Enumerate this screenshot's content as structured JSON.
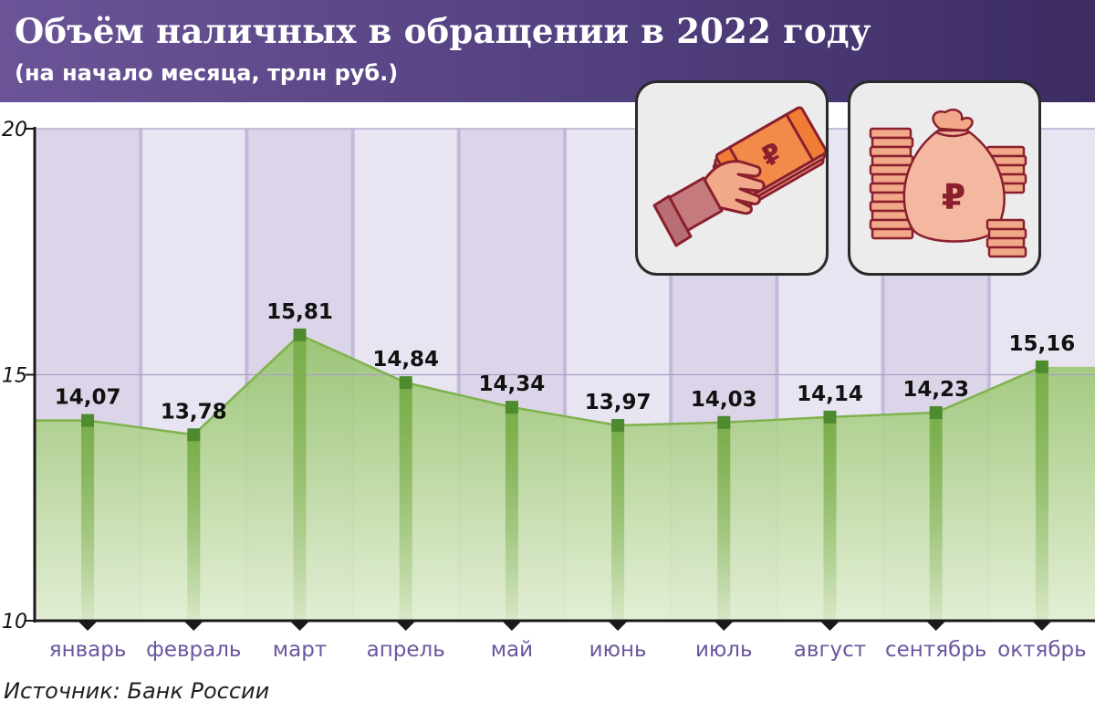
{
  "header": {
    "title": "Объём наличных в обращении в 2022 году",
    "subtitle": "(на начало месяца, трлн руб.)"
  },
  "source": "Источник: Банк России",
  "colors": {
    "header": "#5b4688",
    "band_dark": "#dcd5e9",
    "band_light": "#e8e4f1",
    "divider": "#c3bad9",
    "line": "#7fb24c",
    "marker": "#4e8a2e",
    "month_label": "#6a56a0",
    "icon_fill": "#f2a989",
    "icon_stroke": "#8a1f2e",
    "icon_accent": "#f07c35"
  },
  "icons": [
    "hand-money-icon",
    "money-bag-icon"
  ],
  "chart_data": {
    "type": "area",
    "title": "Объём наличных в обращении в 2022 году",
    "subtitle": "(на начало месяца, трлн руб.)",
    "categories": [
      "январь",
      "февраль",
      "март",
      "апрель",
      "май",
      "июнь",
      "июль",
      "август",
      "сентябрь",
      "октябрь"
    ],
    "values": [
      14.07,
      13.78,
      15.81,
      14.84,
      14.34,
      13.97,
      14.03,
      14.14,
      14.23,
      15.16
    ],
    "value_labels": [
      "14,07",
      "13,78",
      "15,81",
      "14,84",
      "14,34",
      "13,97",
      "14,03",
      "14,14",
      "14,23",
      "15,16"
    ],
    "ylim": [
      10,
      20
    ],
    "yticks": [
      10,
      15,
      20
    ],
    "grid": true,
    "source": "Источник: Банк России"
  }
}
